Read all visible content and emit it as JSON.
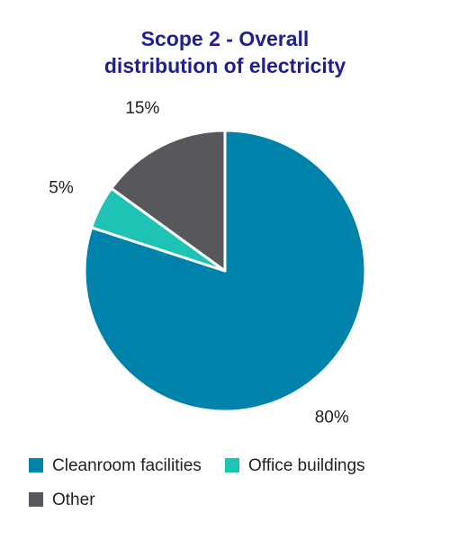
{
  "chart_data": {
    "type": "pie",
    "title_lines": [
      "Scope 2 - Overall",
      "distribution of electricity"
    ],
    "slices": [
      {
        "name": "Cleanroom facilities",
        "value": 80,
        "label": "80%",
        "color": "#0083ab"
      },
      {
        "name": "Office buildings",
        "value": 5,
        "label": "5%",
        "color": "#1ec3b5"
      },
      {
        "name": "Other",
        "value": 15,
        "label": "15%",
        "color": "#57585c"
      }
    ],
    "legend_position": "bottom"
  }
}
